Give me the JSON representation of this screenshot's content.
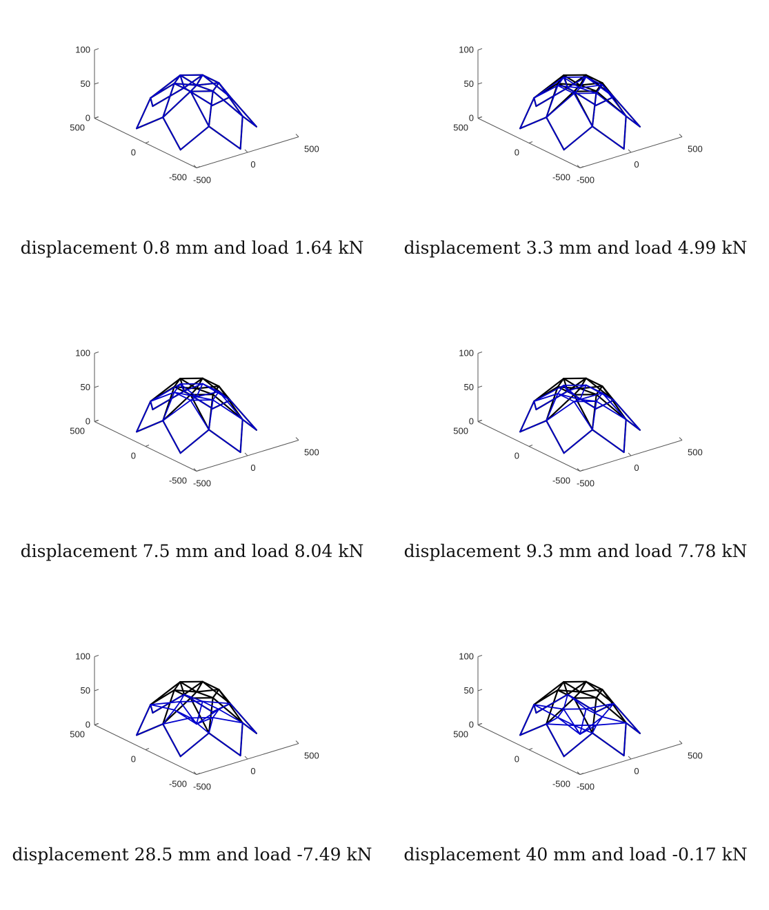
{
  "chart_data": [
    {
      "type": "line",
      "caption": "displacement 0.8 mm and load 1.64 kN",
      "zlim": [
        0,
        100
      ],
      "xlim": [
        -500,
        500
      ],
      "ylim": [
        -500,
        500
      ],
      "z_ticks": [
        "100",
        "50",
        "0"
      ],
      "x_ticks": [
        "-500",
        "0",
        "500"
      ],
      "y_ticks": [
        "500",
        "0",
        "-500"
      ],
      "series": [
        {
          "role": "deformed",
          "color": "#0000cc",
          "apex_z": 65,
          "inner_z": 62
        },
        {
          "role": "undeformed",
          "color": "#000000",
          "apex_z": 65,
          "inner_z": 62
        }
      ]
    },
    {
      "type": "line",
      "caption": "displacement 3.3 mm and load 4.99 kN",
      "zlim": [
        0,
        100
      ],
      "xlim": [
        -500,
        500
      ],
      "ylim": [
        -500,
        500
      ],
      "z_ticks": [
        "100",
        "50",
        "0"
      ],
      "x_ticks": [
        "-500",
        "0",
        "500"
      ],
      "y_ticks": [
        "500",
        "0",
        "-500"
      ],
      "series": [
        {
          "role": "deformed",
          "color": "#0000cc",
          "apex_z": 62,
          "inner_z": 58
        },
        {
          "role": "undeformed",
          "color": "#000000",
          "apex_z": 65,
          "inner_z": 62
        }
      ]
    },
    {
      "type": "line",
      "caption": "displacement 7.5 mm and load 8.04 kN",
      "zlim": [
        0,
        100
      ],
      "xlim": [
        -500,
        500
      ],
      "ylim": [
        -500,
        500
      ],
      "z_ticks": [
        "100",
        "50",
        "0"
      ],
      "x_ticks": [
        "-500",
        "0",
        "500"
      ],
      "y_ticks": [
        "500",
        "0",
        "-500"
      ],
      "series": [
        {
          "role": "deformed",
          "color": "#0000cc",
          "apex_z": 57,
          "inner_z": 50
        },
        {
          "role": "undeformed",
          "color": "#000000",
          "apex_z": 65,
          "inner_z": 62
        }
      ]
    },
    {
      "type": "line",
      "caption": "displacement 9.3 mm and load 7.78 kN",
      "zlim": [
        0,
        100
      ],
      "xlim": [
        -500,
        500
      ],
      "ylim": [
        -500,
        500
      ],
      "z_ticks": [
        "100",
        "50",
        "0"
      ],
      "x_ticks": [
        "-500",
        "0",
        "500"
      ],
      "y_ticks": [
        "500",
        "0",
        "-500"
      ],
      "series": [
        {
          "role": "deformed",
          "color": "#0000cc",
          "apex_z": 55,
          "inner_z": 46
        },
        {
          "role": "undeformed",
          "color": "#000000",
          "apex_z": 65,
          "inner_z": 62
        }
      ]
    },
    {
      "type": "line",
      "caption": "displacement 28.5 mm and load -7.49 kN",
      "zlim": [
        0,
        100
      ],
      "xlim": [
        -500,
        500
      ],
      "ylim": [
        -500,
        500
      ],
      "z_ticks": [
        "100",
        "50",
        "0"
      ],
      "x_ticks": [
        "-500",
        "0",
        "500"
      ],
      "y_ticks": [
        "500",
        "0",
        "-500"
      ],
      "series": [
        {
          "role": "deformed",
          "color": "#0000cc",
          "apex_z": 36,
          "inner_z": 15
        },
        {
          "role": "undeformed",
          "color": "#000000",
          "apex_z": 65,
          "inner_z": 62
        }
      ]
    },
    {
      "type": "line",
      "caption": "displacement 40 mm and load -0.17 kN",
      "zlim": [
        0,
        100
      ],
      "xlim": [
        -500,
        500
      ],
      "ylim": [
        -500,
        500
      ],
      "z_ticks": [
        "100",
        "50",
        "0"
      ],
      "x_ticks": [
        "-500",
        "0",
        "500"
      ],
      "y_ticks": [
        "500",
        "0",
        "-500"
      ],
      "series": [
        {
          "role": "deformed",
          "color": "#0000cc",
          "apex_z": 25,
          "inner_z": 0
        },
        {
          "role": "undeformed",
          "color": "#000000",
          "apex_z": 65,
          "inner_z": 62
        }
      ]
    }
  ]
}
